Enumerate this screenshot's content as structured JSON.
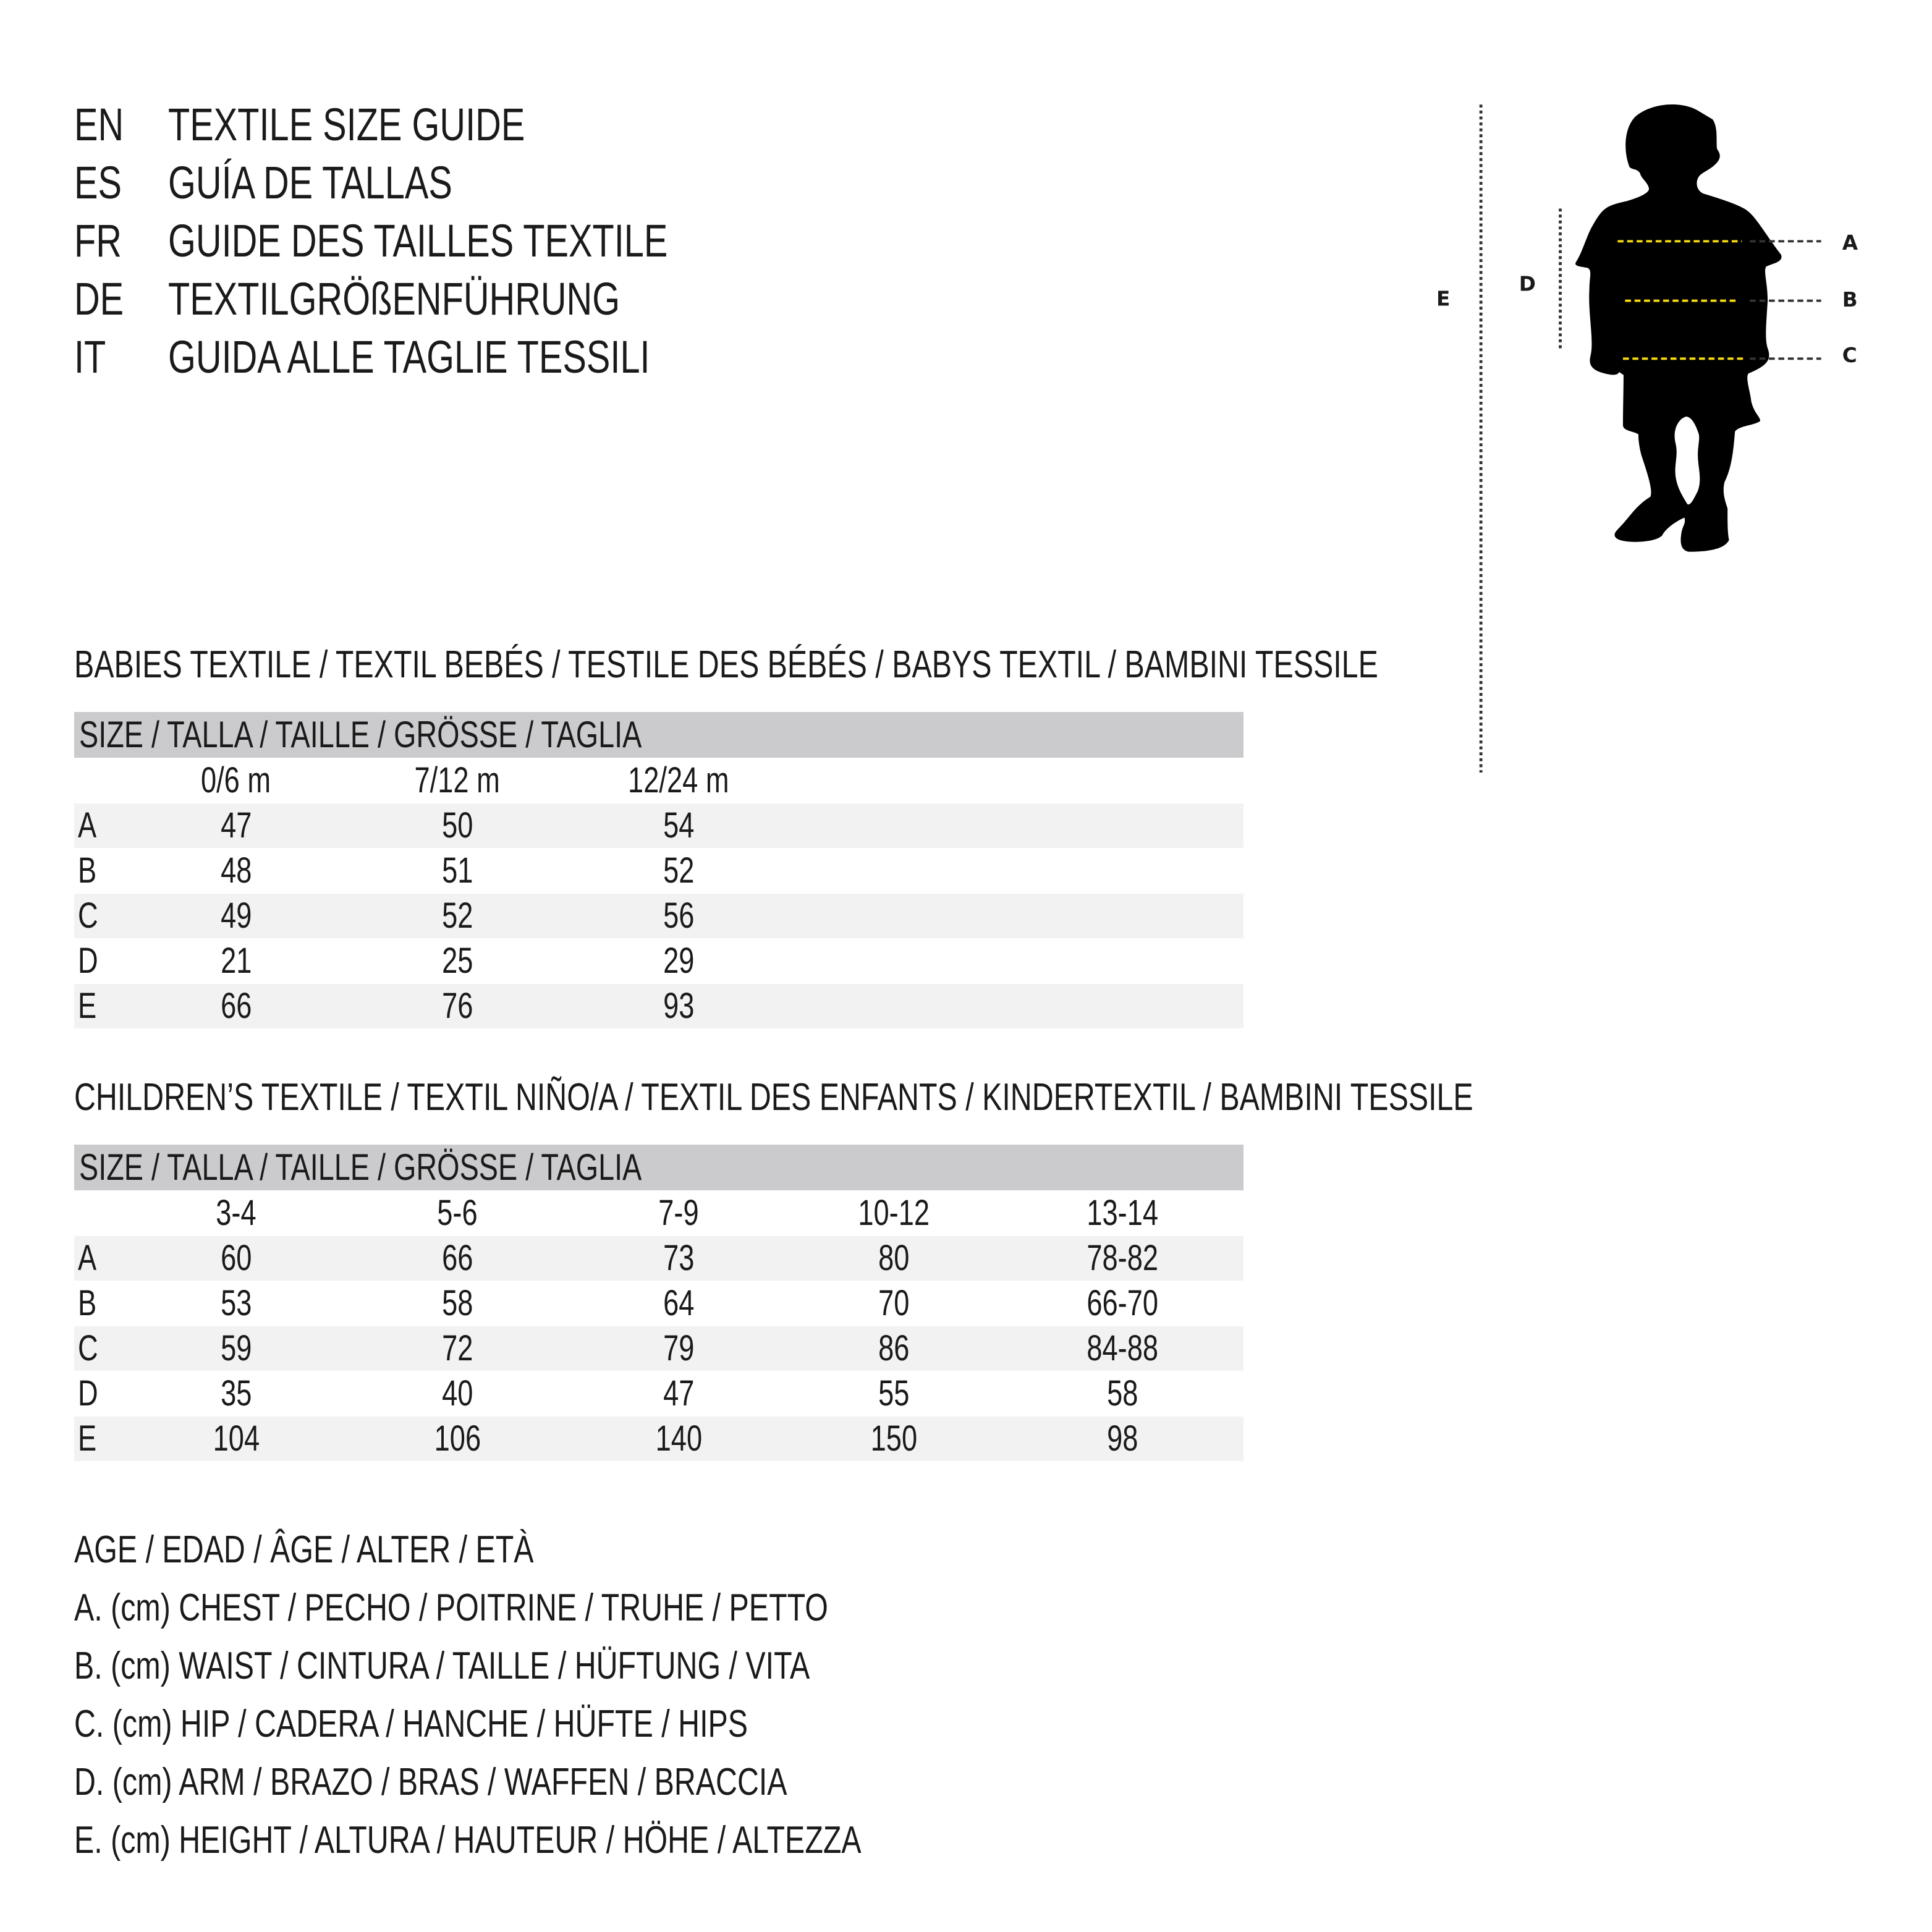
{
  "titles": [
    {
      "code": "EN",
      "text": "TEXTILE SIZE GUIDE"
    },
    {
      "code": "ES",
      "text": "GUÍA DE TALLAS"
    },
    {
      "code": "FR",
      "text": "GUIDE DES TAILLES TEXTILE"
    },
    {
      "code": "DE",
      "text": "TEXTILGRÖßENFÜHRUNG"
    },
    {
      "code": "IT",
      "text": "GUIDA ALLE TAGLIE TESSILI"
    }
  ],
  "figure": {
    "labels": {
      "A": "A",
      "B": "B",
      "C": "C",
      "D": "D",
      "E": "E"
    },
    "colors": {
      "silhouette": "#000000",
      "measure_line": "#f5d80f",
      "guide_line": "#333333"
    }
  },
  "babies": {
    "heading": "BABIES TEXTILE / TEXTIL BEBÉS / TESTILE DES BÉBÉS / BABYS TEXTIL / BAMBINI TESSILE",
    "size_header": "SIZE / TALLA / TAILLE / GRÖSSE / TAGLIA",
    "columns": [
      "0/6 m",
      "7/12 m",
      "12/24 m"
    ],
    "rows": [
      {
        "label": "A",
        "values": [
          "47",
          "50",
          "54"
        ]
      },
      {
        "label": "B",
        "values": [
          "48",
          "51",
          "52"
        ]
      },
      {
        "label": "C",
        "values": [
          "49",
          "52",
          "56"
        ]
      },
      {
        "label": "D",
        "values": [
          "21",
          "25",
          "29"
        ]
      },
      {
        "label": "E",
        "values": [
          "66",
          "76",
          "93"
        ]
      }
    ]
  },
  "children": {
    "heading": "CHILDREN’S TEXTILE / TEXTIL NIÑO/A / TEXTIL DES ENFANTS / KINDERTEXTIL / BAMBINI TESSILE",
    "size_header": "SIZE / TALLA / TAILLE / GRÖSSE / TAGLIA",
    "columns": [
      "3-4",
      "5-6",
      "7-9",
      "10-12",
      "13-14"
    ],
    "rows": [
      {
        "label": "A",
        "values": [
          "60",
          "66",
          "73",
          "80",
          "78-82"
        ]
      },
      {
        "label": "B",
        "values": [
          "53",
          "58",
          "64",
          "70",
          "66-70"
        ]
      },
      {
        "label": "C",
        "values": [
          "59",
          "72",
          "79",
          "86",
          "84-88"
        ]
      },
      {
        "label": "D",
        "values": [
          "35",
          "40",
          "47",
          "55",
          "58"
        ]
      },
      {
        "label": "E",
        "values": [
          "104",
          "106",
          "140",
          "150",
          "98"
        ]
      }
    ]
  },
  "legend": [
    "AGE / EDAD / ÂGE / ALTER / ETÀ",
    "A. (cm) CHEST / PECHO / POITRINE / TRUHE / PETTO",
    "B. (cm) WAIST / CINTURA / TAILLE / HÜFTUNG / VITA",
    "C. (cm) HIP / CADERA / HANCHE / HÜFTE / HIPS",
    "D. (cm) ARM / BRAZO / BRAS / WAFFEN / BRACCIA",
    "E. (cm) HEIGHT / ALTURA / HAUTEUR / HÖHE / ALTEZZA"
  ]
}
